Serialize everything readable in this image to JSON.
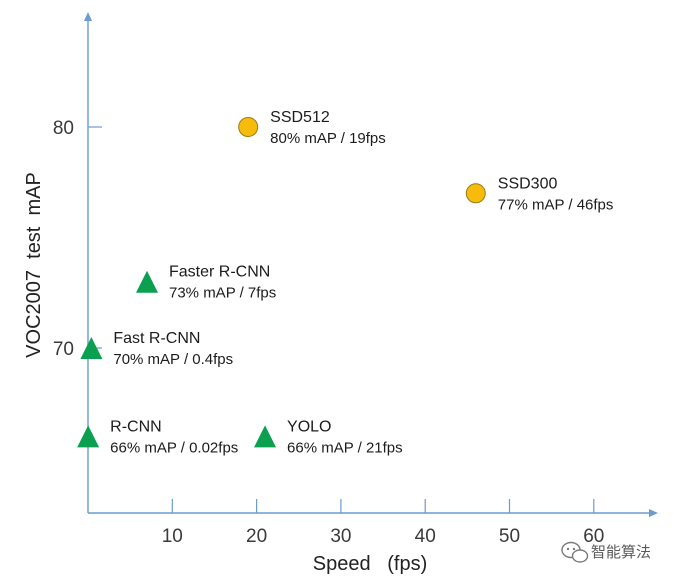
{
  "chart_data": {
    "type": "scatter",
    "title": "",
    "xlabel": "Speed   (fps)",
    "ylabel": "VOC2007  test  mAP",
    "xlim": [
      0,
      65
    ],
    "ylim": [
      61,
      84
    ],
    "x_ticks": [
      10,
      20,
      30,
      40,
      50,
      60
    ],
    "y_ticks": [
      70,
      80
    ],
    "grid": false,
    "legend": "none",
    "colors": {
      "triangle": "#0aa050",
      "circle": "#f7bb0b",
      "circle_stroke": "#9a7a1a",
      "axis": "#6b9bd1"
    },
    "points": [
      {
        "name": "R-CNN",
        "stats": "66% mAP / 0.02fps",
        "x": 0.02,
        "y": 66,
        "marker": "triangle"
      },
      {
        "name": "Fast R-CNN",
        "stats": "70% mAP / 0.4fps",
        "x": 0.4,
        "y": 70,
        "marker": "triangle"
      },
      {
        "name": "Faster R-CNN",
        "stats": "73% mAP / 7fps",
        "x": 7,
        "y": 73,
        "marker": "triangle"
      },
      {
        "name": "YOLO",
        "stats": "66% mAP / 21fps",
        "x": 21,
        "y": 66,
        "marker": "triangle"
      },
      {
        "name": "SSD512",
        "stats": "80% mAP / 19fps",
        "x": 19,
        "y": 80,
        "marker": "circle"
      },
      {
        "name": "SSD300",
        "stats": "77% mAP / 46fps",
        "x": 46,
        "y": 77,
        "marker": "circle"
      }
    ]
  },
  "watermark": {
    "text": "智能算法",
    "icon": "wechat-icon"
  }
}
